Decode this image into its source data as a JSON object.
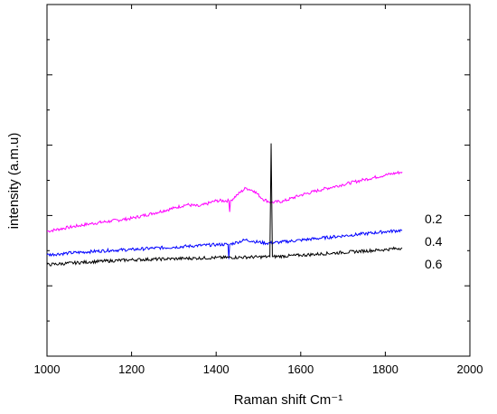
{
  "chart_data": {
    "type": "line",
    "xlabel": "Raman shift Cm⁻¹",
    "ylabel": "intensity (a.m.u)",
    "xlim": [
      1000,
      2000
    ],
    "ylim": [
      0,
      10
    ],
    "xticks": [
      1000,
      1200,
      1400,
      1600,
      1800,
      2000
    ],
    "x_tick_labels": [
      "1000",
      "1200",
      "1400",
      "1600",
      "1800",
      "2000"
    ],
    "y_major_ticks": [
      0,
      2,
      4,
      6,
      8,
      10
    ],
    "y_minor_ticks": [
      1,
      3,
      5,
      7,
      9
    ],
    "y_tick_labels_shown": false,
    "grid": false,
    "series": [
      {
        "name": "0.2",
        "color": "#ff00ff",
        "x": [
          1000,
          1050,
          1100,
          1150,
          1200,
          1250,
          1300,
          1330,
          1360,
          1400,
          1430,
          1432,
          1434,
          1450,
          1470,
          1490,
          1510,
          1530,
          1560,
          1600,
          1650,
          1700,
          1750,
          1800,
          1840
        ],
        "y": [
          3.55,
          3.66,
          3.76,
          3.84,
          3.92,
          4.06,
          4.21,
          4.31,
          4.26,
          4.42,
          4.42,
          4.1,
          4.42,
          4.59,
          4.78,
          4.7,
          4.47,
          4.37,
          4.41,
          4.58,
          4.74,
          4.88,
          5.02,
          5.15,
          5.24
        ]
      },
      {
        "name": "0.4",
        "color": "#0000ff",
        "x": [
          1000,
          1050,
          1100,
          1150,
          1200,
          1250,
          1300,
          1350,
          1400,
          1428,
          1430,
          1432,
          1450,
          1470,
          1490,
          1520,
          1550,
          1600,
          1650,
          1700,
          1750,
          1800,
          1840
        ],
        "y": [
          2.88,
          2.93,
          2.97,
          3.01,
          3.03,
          3.07,
          3.1,
          3.14,
          3.17,
          3.18,
          2.76,
          3.18,
          3.24,
          3.31,
          3.26,
          3.21,
          3.24,
          3.3,
          3.36,
          3.42,
          3.48,
          3.54,
          3.58
        ]
      },
      {
        "name": "0.6",
        "color": "#000000",
        "x": [
          1000,
          1100,
          1200,
          1300,
          1400,
          1500,
          1527,
          1530,
          1533,
          1536,
          1600,
          1700,
          1800,
          1840
        ],
        "y": [
          2.6,
          2.68,
          2.74,
          2.77,
          2.8,
          2.82,
          2.83,
          6.05,
          2.83,
          2.83,
          2.87,
          2.95,
          3.03,
          3.08
        ]
      }
    ]
  }
}
